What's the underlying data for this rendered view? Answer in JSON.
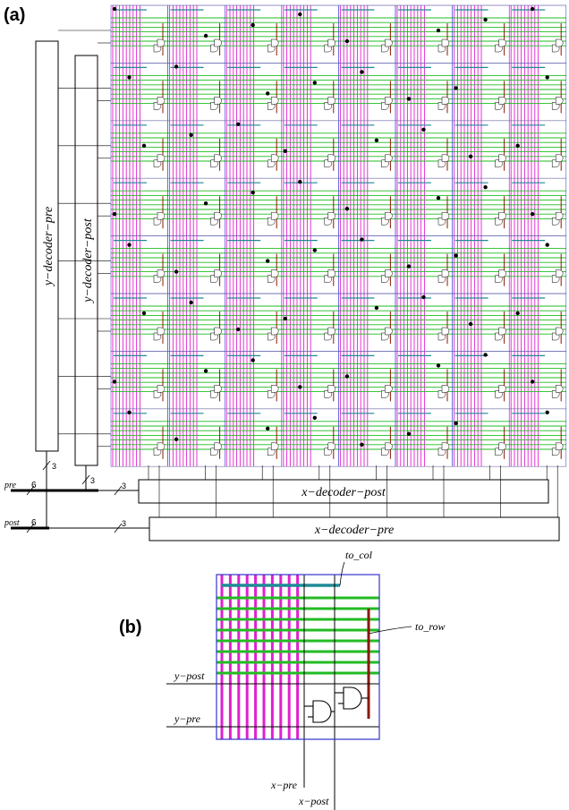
{
  "panel_a": {
    "label": "(a)",
    "grid": {
      "rows": 8,
      "cols": 8
    },
    "labels": {
      "y_decoder_pre": "y−decoder−pre",
      "y_decoder_post": "y−decoder−post",
      "x_decoder_post": "x−decoder−post",
      "x_decoder_pre": "x−decoder−pre",
      "pre": "pre",
      "post": "post",
      "bus_pre_width": "6",
      "bus_post_width": "6",
      "bus_y_width": "3",
      "bus_y_post_width": "3",
      "bus_x_post_width": "3",
      "bus_x_pre_width": "3"
    }
  },
  "panel_b": {
    "label": "(b)",
    "labels": {
      "to_col": "to_col",
      "to_row": "to_row",
      "y_post": "y−post",
      "y_pre": "y−pre",
      "x_pre": "x−pre",
      "x_post": "x−post"
    }
  },
  "colors": {
    "magenta": "#e020d0",
    "green": "#22bb22",
    "teal": "#1f8a96",
    "darkred": "#8b1a00",
    "blue": "#3333cc",
    "black": "#000000"
  }
}
